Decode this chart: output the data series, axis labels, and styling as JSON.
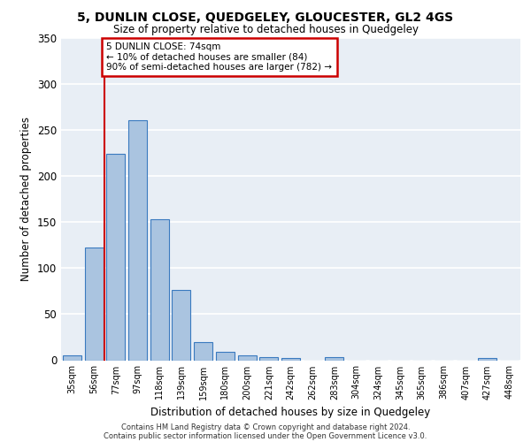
{
  "title1": "5, DUNLIN CLOSE, QUEDGELEY, GLOUCESTER, GL2 4GS",
  "title2": "Size of property relative to detached houses in Quedgeley",
  "xlabel": "Distribution of detached houses by size in Quedgeley",
  "ylabel": "Number of detached properties",
  "categories": [
    "35sqm",
    "56sqm",
    "77sqm",
    "97sqm",
    "118sqm",
    "139sqm",
    "159sqm",
    "180sqm",
    "200sqm",
    "221sqm",
    "242sqm",
    "262sqm",
    "283sqm",
    "304sqm",
    "324sqm",
    "345sqm",
    "365sqm",
    "386sqm",
    "407sqm",
    "427sqm",
    "448sqm"
  ],
  "values": [
    5,
    122,
    224,
    260,
    153,
    76,
    20,
    9,
    5,
    3,
    2,
    0,
    3,
    0,
    0,
    0,
    0,
    0,
    0,
    2,
    0
  ],
  "bar_color": "#aac4e0",
  "bar_edge_color": "#3a7abf",
  "annotation_box_text": "5 DUNLIN CLOSE: 74sqm\n← 10% of detached houses are smaller (84)\n90% of semi-detached houses are larger (782) →",
  "annotation_box_color": "#ffffff",
  "annotation_box_edge_color": "#cc0000",
  "vline_color": "#cc0000",
  "vline_x_index": 2,
  "ylim": [
    0,
    350
  ],
  "yticks": [
    0,
    50,
    100,
    150,
    200,
    250,
    300,
    350
  ],
  "bg_color": "#e8eef5",
  "grid_color": "#ffffff",
  "footer1": "Contains HM Land Registry data © Crown copyright and database right 2024.",
  "footer2": "Contains public sector information licensed under the Open Government Licence v3.0."
}
